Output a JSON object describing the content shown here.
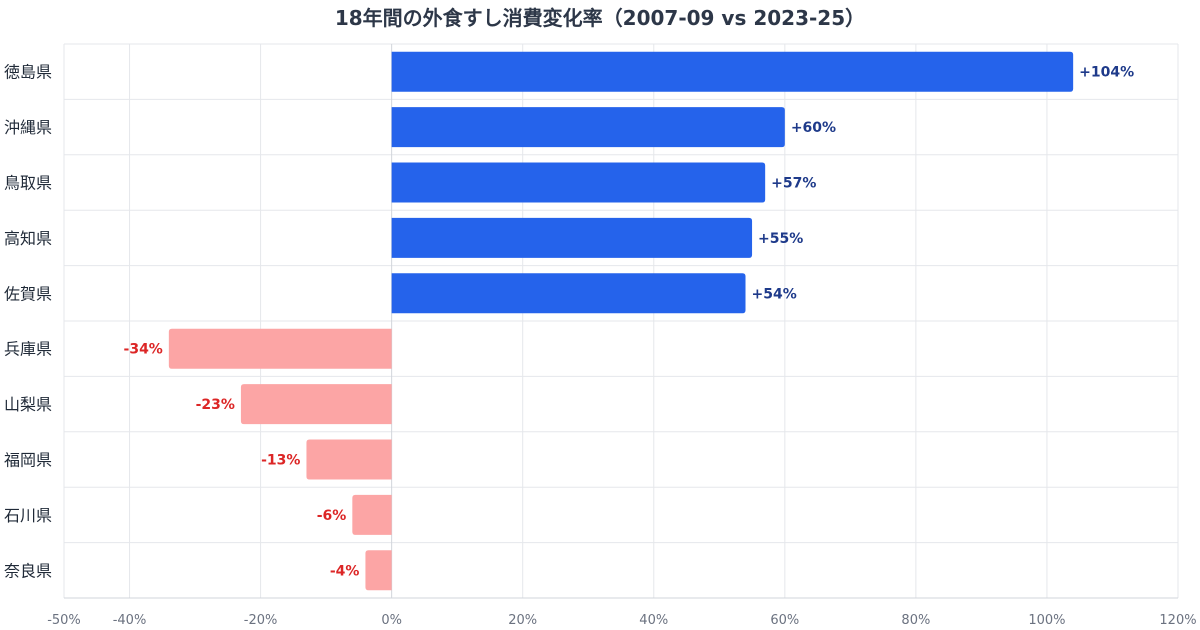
{
  "chart_data": {
    "type": "bar",
    "orientation": "horizontal",
    "title": "18年間の外食すし消費変化率（2007-09 vs 2023-25）",
    "xlabel": "",
    "ylabel": "",
    "categories": [
      "徳島県",
      "沖縄県",
      "鳥取県",
      "高知県",
      "佐賀県",
      "兵庫県",
      "山梨県",
      "福岡県",
      "石川県",
      "奈良県"
    ],
    "values": [
      104,
      60,
      57,
      55,
      54,
      -34,
      -23,
      -13,
      -6,
      -4
    ],
    "data_labels": [
      "+104%",
      "+60%",
      "+57%",
      "+55%",
      "+54%",
      "-34%",
      "-23%",
      "-13%",
      "-6%",
      "-4%"
    ],
    "xlim": [
      -50,
      120
    ],
    "x_ticks": [
      -50,
      -40,
      -20,
      0,
      20,
      40,
      60,
      80,
      100,
      120
    ],
    "x_tick_labels": [
      "-50%",
      "-40%",
      "-20%",
      "0%",
      "20%",
      "40%",
      "60%",
      "80%",
      "100%",
      "120%"
    ],
    "grid": true,
    "legend": "none",
    "colors": {
      "positive": "#2563eb",
      "negative": "#fca5a5",
      "positive_label": "#1e3a8a",
      "negative_label": "#dc2626",
      "grid": "#e5e7eb",
      "axis_text": "#6b7280",
      "category_text": "#1f2937"
    }
  }
}
